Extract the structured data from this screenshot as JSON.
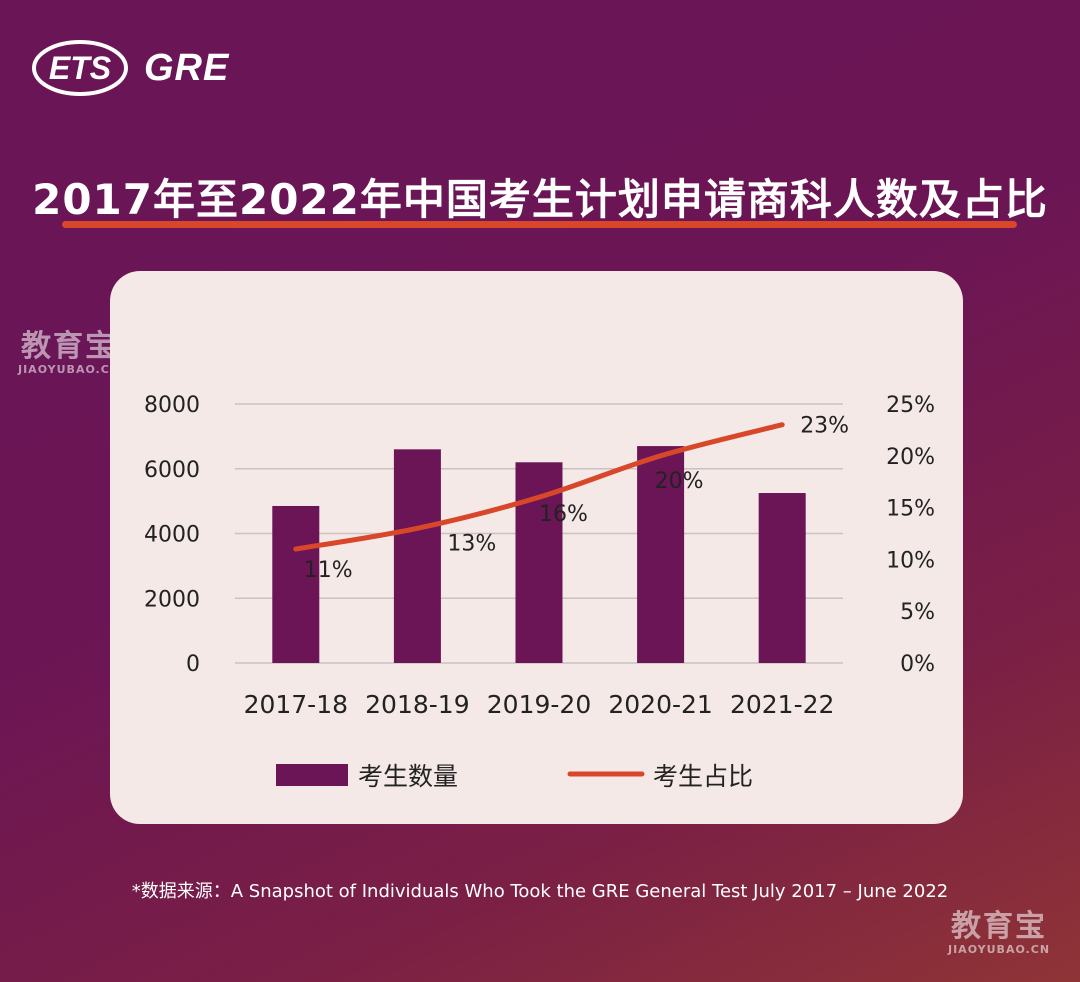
{
  "logo": {
    "ets": "ETS",
    "gre": "GRE"
  },
  "title": "2017年至2022年中国考生计划申请商科人数及占比",
  "watermark": {
    "cn": "教育宝",
    "en": "JIAOYUBAO.CN"
  },
  "source": "*数据来源：A Snapshot of Individuals Who Took the GRE General Test July 2017 – June 2022",
  "colors": {
    "bar": "#6b1556",
    "line": "#d9472b",
    "card": "#f4e9e7"
  },
  "chart_data": {
    "type": "bar",
    "categories": [
      "2017-18",
      "2018-19",
      "2019-20",
      "2020-21",
      "2021-22"
    ],
    "series": [
      {
        "name": "考生数量",
        "type": "bar",
        "axis": "left",
        "values": [
          4850,
          6600,
          6200,
          6700,
          5250
        ]
      },
      {
        "name": "考生占比",
        "type": "line",
        "axis": "right",
        "values": [
          11,
          13,
          16,
          20,
          23
        ],
        "labels": [
          "11%",
          "13%",
          "16%",
          "20%",
          "23%"
        ]
      }
    ],
    "y_left": {
      "ticks": [
        "0",
        "2000",
        "4000",
        "6000",
        "8000"
      ],
      "lim": [
        0,
        8000
      ]
    },
    "y_right": {
      "ticks": [
        "0%",
        "5%",
        "10%",
        "15%",
        "20%",
        "25%"
      ],
      "lim": [
        0,
        25
      ]
    },
    "legend": {
      "position": "bottom",
      "items": [
        "考生数量",
        "考生占比"
      ]
    },
    "grid": true
  }
}
